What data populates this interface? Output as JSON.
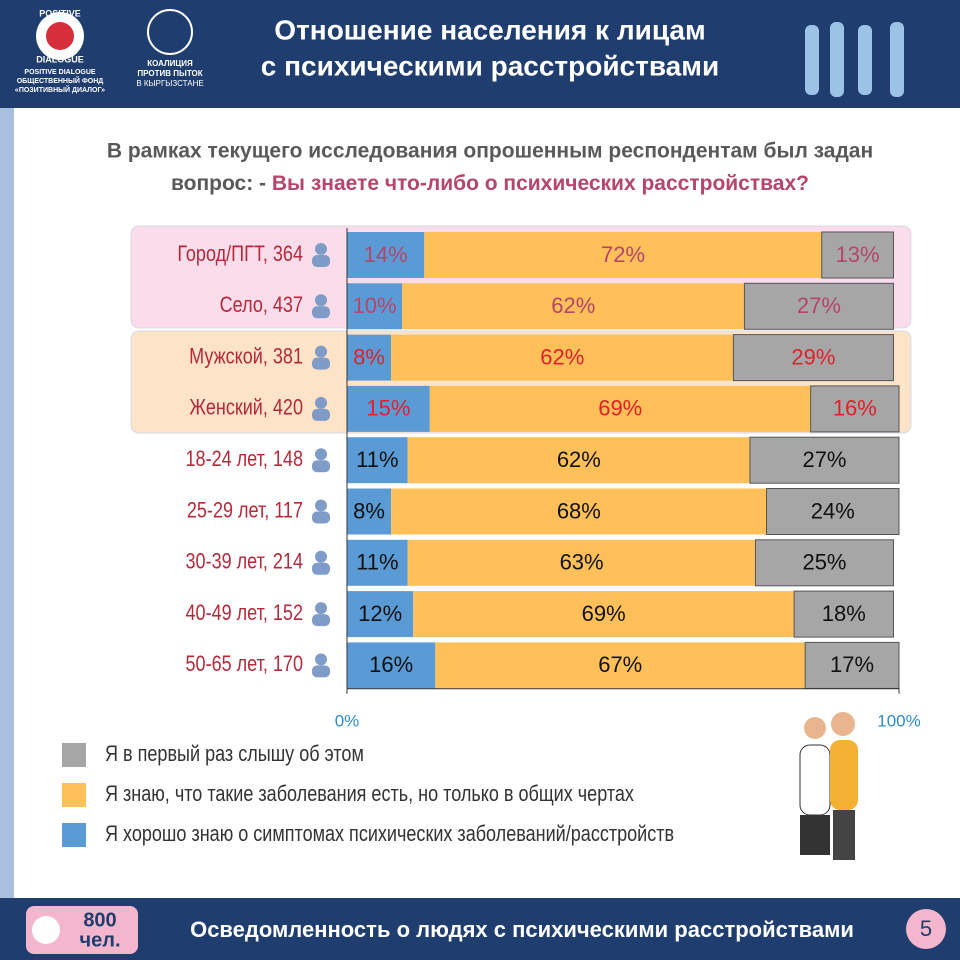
{
  "header": {
    "logo1": [
      "POSITIVE",
      "DIALOGUE",
      "POSITIVE DIALOGUE",
      "ОБЩЕСТВЕННЫЙ ФОНД",
      "«ПОЗИТИВНЫЙ ДИАЛОГ»"
    ],
    "logo2": [
      "КОАЛИЦИЯ",
      "ПРОТИВ ПЫТОК",
      "В КЫРГЫЗСТАНЕ"
    ],
    "title": [
      "Отношение населения к лицам",
      "с психическими расстройствами"
    ]
  },
  "question": {
    "line1": "В рамках текущего исследования опрошенным респондентам был задан",
    "line2": "вопрос: - ",
    "highlight": "Вы знаете что-либо о психических расстройствах?"
  },
  "chart_data": {
    "type": "stacked-bar-horizontal",
    "categories": [
      "Город/ПГТ, 364",
      "Село, 437",
      "Мужской, 381",
      "Женский, 420",
      "18-24 лет, 148",
      "25-29 лет, 117",
      "30-39 лет, 214",
      "40-49 лет, 152",
      "50-65 лет, 170"
    ],
    "series": [
      {
        "name": "Я хорошо знаю о симптомах психических заболеваний/расстройств",
        "color": "#5b9bd5",
        "values": [
          14,
          10,
          8,
          15,
          11,
          8,
          11,
          12,
          16
        ],
        "value_labels": [
          "14%",
          "10%",
          "8%",
          "15%",
          "11%",
          "8%",
          "11%",
          "12%",
          "16%"
        ]
      },
      {
        "name": "Я знаю, что такие заболевания есть, но только в общих чертах",
        "color": "#ffc05a",
        "values": [
          72,
          62,
          62,
          69,
          62,
          68,
          63,
          69,
          67
        ],
        "value_labels": [
          "72%",
          "62%",
          "62%",
          "69%",
          "62%",
          "68%",
          "63%",
          "69%",
          "67%"
        ]
      },
      {
        "name": "Я в первый раз слышу об этом",
        "color": "#a6a6a6",
        "values": [
          13,
          27,
          29,
          16,
          27,
          24,
          25,
          18,
          17
        ],
        "value_labels": [
          "13%",
          "27%",
          "29%",
          "16%",
          "27%",
          "24%",
          "25%",
          "18%",
          "17%"
        ]
      }
    ],
    "xlim": [
      0,
      100
    ],
    "xticks": [
      {
        "value": 0,
        "label": "0%"
      },
      {
        "value": 100,
        "label": "100%"
      }
    ]
  },
  "footer": {
    "count": [
      "800",
      "чел."
    ],
    "text": "Осведомленность о людях с психическими расстройствами",
    "page": "5"
  }
}
